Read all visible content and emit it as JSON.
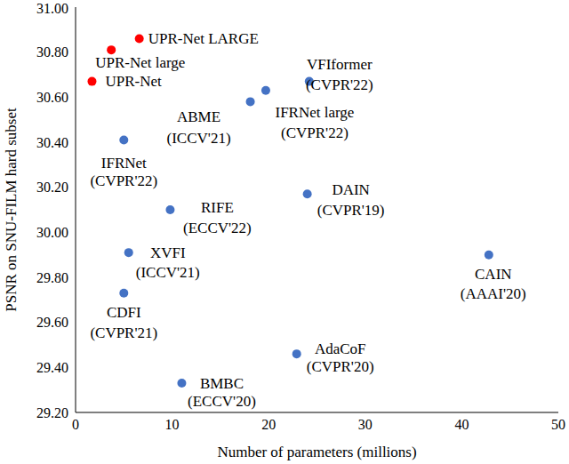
{
  "chart_data": {
    "type": "scatter",
    "xlabel": "Number of parameters (millions)",
    "ylabel": "PSNR on SNU-FILM hard subset",
    "x": [
      6.6,
      3.7,
      1.7,
      24.2,
      19.7,
      18.1,
      5.0,
      24.0,
      9.8,
      5.5,
      42.8,
      5.0,
      22.9,
      11.0
    ],
    "values": [
      30.86,
      30.81,
      30.67,
      30.67,
      30.63,
      30.58,
      30.41,
      30.17,
      30.1,
      29.91,
      29.9,
      29.73,
      29.46,
      29.33
    ],
    "labels": [
      [
        "UPR-Net LARGE"
      ],
      [
        "UPR-Net large"
      ],
      [
        "UPR-Net"
      ],
      [
        "VFIformer",
        "(CVPR'22)"
      ],
      [
        "IFRNet large",
        "(CVPR'22)"
      ],
      [
        "ABME",
        "(ICCV'21)"
      ],
      [
        "IFRNet",
        "(CVPR'22)"
      ],
      [
        "DAIN",
        "(CVPR'19)"
      ],
      [
        "RIFE",
        "(ECCV'22)"
      ],
      [
        "XVFI",
        "(ICCV'21)"
      ],
      [
        "CAIN",
        "(AAAI'20)"
      ],
      [
        "CDFI",
        "(CVPR'21)"
      ],
      [
        "AdaCoF",
        "(CVPR'20)"
      ],
      [
        "BMBC",
        "(ECCV'20)"
      ]
    ],
    "colors": [
      "#ff0000",
      "#ff0000",
      "#ff0000",
      "#4472c4",
      "#4472c4",
      "#4472c4",
      "#4472c4",
      "#4472c4",
      "#4472c4",
      "#4472c4",
      "#4472c4",
      "#4472c4",
      "#4472c4",
      "#4472c4"
    ],
    "xlim": [
      0,
      50
    ],
    "xticks": [
      0,
      10,
      20,
      30,
      40,
      50
    ],
    "ylim": [
      29.2,
      31.0
    ],
    "yticks": [
      {
        "value": 29.2,
        "label": "29.20"
      },
      {
        "value": 29.4,
        "label": "29.40"
      },
      {
        "value": 29.6,
        "label": "29.60"
      },
      {
        "value": 29.8,
        "label": "29.80"
      },
      {
        "value": 30.0,
        "label": "30.00"
      },
      {
        "value": 30.2,
        "label": "30.20"
      },
      {
        "value": 30.4,
        "label": "30.40"
      },
      {
        "value": 30.6,
        "label": "30.60"
      },
      {
        "value": 30.8,
        "label": "30.80"
      },
      {
        "value": 31.0,
        "label": "31.00"
      }
    ],
    "grid": false
  }
}
